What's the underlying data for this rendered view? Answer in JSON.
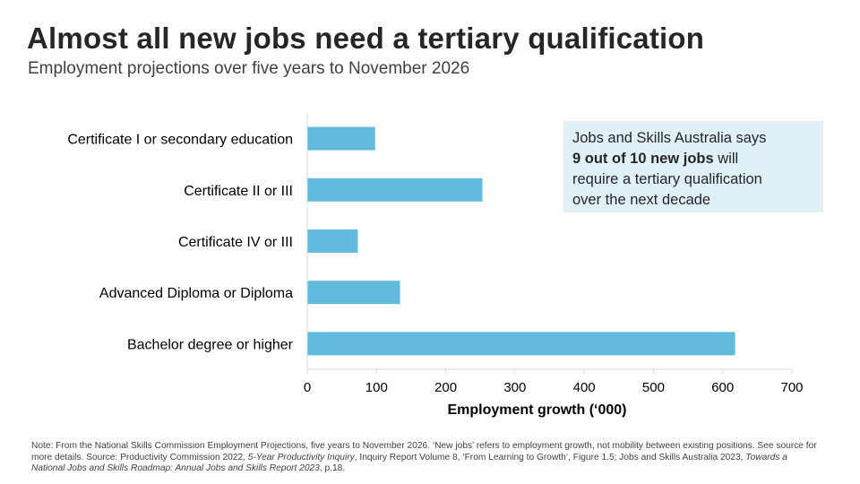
{
  "header": {
    "title": "Almost all new jobs need a tertiary qualification",
    "subtitle": "Employment projections over five years to November 2026"
  },
  "callout": {
    "line1": "Jobs and Skills Australia says",
    "bold": "9 out of 10 new jobs",
    "after_bold": " will",
    "line3": "require a tertiary qualification",
    "line4": "over the next decade"
  },
  "note": {
    "p1": "Note: From the National Skills Commission Employment Projections, five years to November 2026. ‘New jobs’ refers to employment growth, not mobility between existing positions. See source for more details. Source: Productivity Commission 2022, ",
    "i1": "5-Year Productivity Inquiry",
    "p2": ", Inquiry Report Volume 8, ‘From Learning to Growth’, Figure 1.5; Jobs and Skills Australia 2023, ",
    "i2": "Towards a National Jobs and Skills Roadmap: Annual Jobs and Skills Report 2023",
    "p3": ", p.18."
  },
  "chart_data": {
    "type": "bar",
    "orientation": "horizontal",
    "categories": [
      "Certificate I or secondary education",
      "Certificate II or III",
      "Certificate IV or III",
      "Advanced Diploma or Diploma",
      "Bachelor degree or higher"
    ],
    "values": [
      98,
      253,
      73,
      134,
      618
    ],
    "xlabel": "Employment growth (‘000)",
    "ylabel": "",
    "xlim": [
      0,
      700
    ],
    "xticks": [
      0,
      100,
      200,
      300,
      400,
      500,
      600,
      700
    ],
    "grid": false,
    "bar_color": "#62bbdc"
  }
}
